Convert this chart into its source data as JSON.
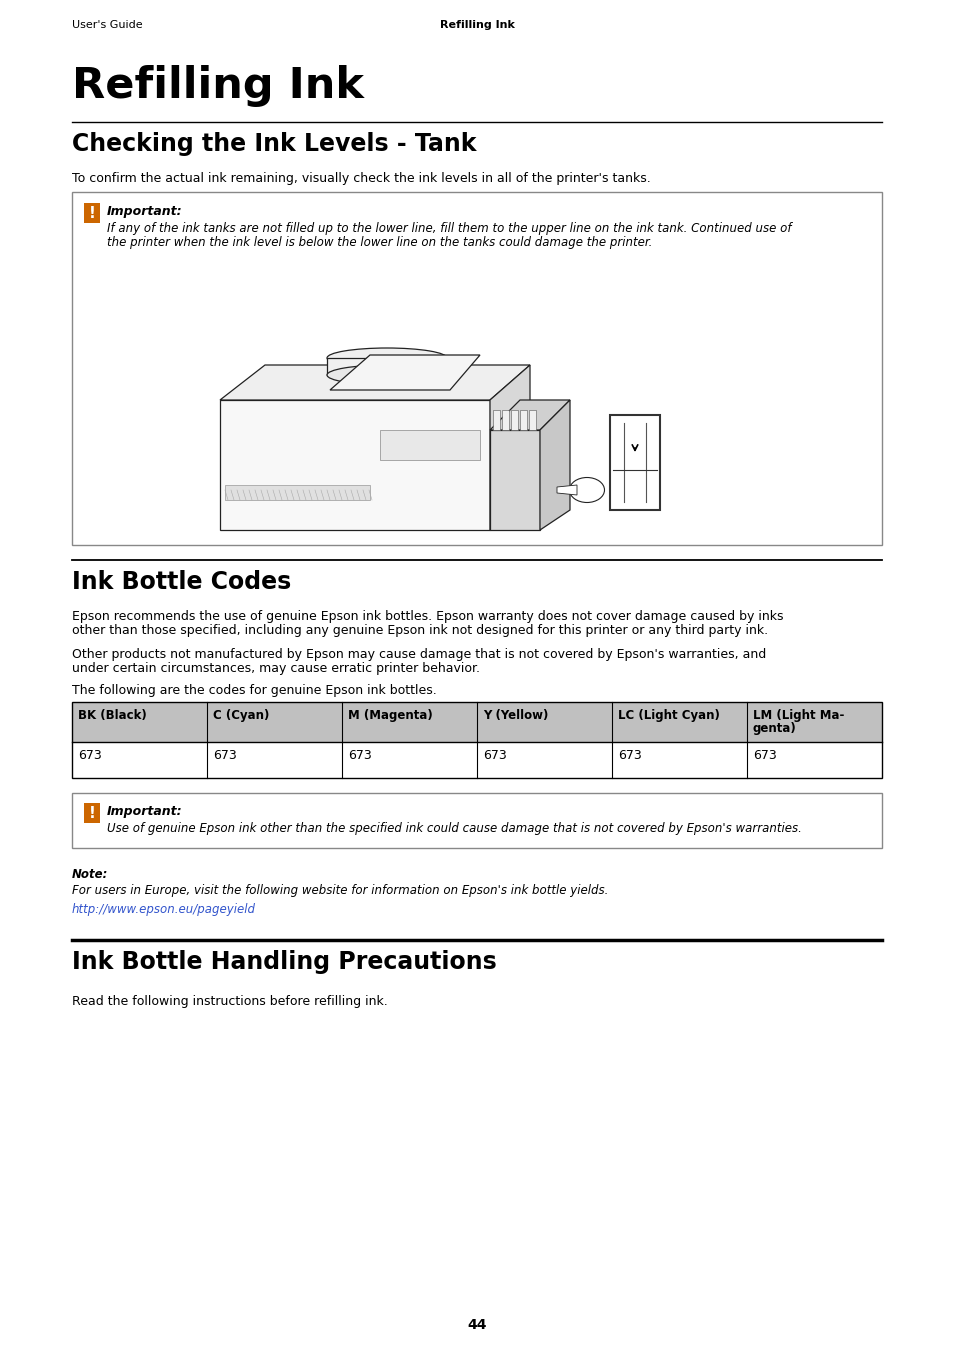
{
  "page_header_left": "User's Guide",
  "page_header_center": "Refilling Ink",
  "main_title": "Refilling Ink",
  "section1_title": "Checking the Ink Levels - Tank",
  "section1_body": "To confirm the actual ink remaining, visually check the ink levels in all of the printer's tanks.",
  "important1_label": "Important:",
  "important1_text_line1": "If any of the ink tanks are not filled up to the lower line, fill them to the upper line on the ink tank. Continued use of",
  "important1_text_line2": "the printer when the ink level is below the lower line on the tanks could damage the printer.",
  "section2_title": "Ink Bottle Codes",
  "section2_para1_line1": "Epson recommends the use of genuine Epson ink bottles. Epson warranty does not cover damage caused by inks",
  "section2_para1_line2": "other than those specified, including any genuine Epson ink not designed for this printer or any third party ink.",
  "section2_para2_line1": "Other products not manufactured by Epson may cause damage that is not covered by Epson's warranties, and",
  "section2_para2_line2": "under certain circumstances, may cause erratic printer behavior.",
  "section2_para3": "The following are the codes for genuine Epson ink bottles.",
  "table_headers": [
    "BK (Black)",
    "C (Cyan)",
    "M (Magenta)",
    "Y (Yellow)",
    "LC (Light Cyan)",
    "LM (Light Ma-\ngenta)"
  ],
  "table_values": [
    "673",
    "673",
    "673",
    "673",
    "673",
    "673"
  ],
  "important2_label": "Important:",
  "important2_text": "Use of genuine Epson ink other than the specified ink could cause damage that is not covered by Epson's warranties.",
  "note_label": "Note:",
  "note_text": "For users in Europe, visit the following website for information on Epson's ink bottle yields.",
  "note_link": "http://www.epson.eu/pageyield",
  "section3_title": "Ink Bottle Handling Precautions",
  "section3_body": "Read the following instructions before refilling ink.",
  "page_number": "44",
  "bg_color": "#ffffff",
  "text_color": "#000000",
  "link_color": "#3355cc",
  "table_header_bg": "#c0c0c0",
  "table_border_color": "#000000",
  "box_border_color": "#888888",
  "icon_color": "#cc6600",
  "rule_color": "#000000",
  "printer_line_color": "#222222",
  "printer_fill": "#f8f8f8",
  "printer_shadow": "#d8d8d8"
}
